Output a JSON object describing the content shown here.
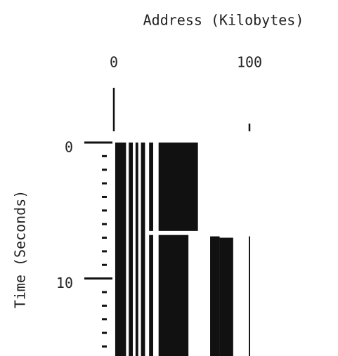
{
  "chart_data": {
    "type": "range",
    "title": "Address (Kilobytes)",
    "y_label": "Time (Seconds)",
    "xlim": [
      0,
      100
    ],
    "xticks": [
      0,
      100
    ],
    "ylim": [
      0,
      15.7
    ],
    "yticks": [
      0,
      10
    ],
    "yminorticks": [
      1,
      2,
      3,
      4,
      5,
      6,
      7,
      8,
      9,
      11,
      12,
      13,
      14,
      15
    ],
    "color": "#111111",
    "regions": [
      {
        "x": [
          1,
          9
        ],
        "t": [
          0,
          15.7
        ]
      },
      {
        "x": [
          11,
          14
        ],
        "t": [
          0,
          15.7
        ]
      },
      {
        "x": [
          16,
          18
        ],
        "t": [
          0,
          15.7
        ]
      },
      {
        "x": [
          20,
          23
        ],
        "t": [
          0,
          15.7
        ]
      },
      {
        "x": [
          26,
          29
        ],
        "t": [
          0,
          6.5
        ]
      },
      {
        "x": [
          26,
          29
        ],
        "t": [
          6.8,
          15.7
        ]
      },
      {
        "x": [
          33,
          62
        ],
        "t": [
          0,
          6.5
        ]
      },
      {
        "x": [
          33,
          55
        ],
        "t": [
          6.8,
          15.7
        ]
      },
      {
        "x": [
          71,
          78
        ],
        "t": [
          6.9,
          15.7
        ]
      },
      {
        "x": [
          78,
          88
        ],
        "t": [
          7,
          15.7
        ]
      },
      {
        "x": [
          99.5,
          100.5
        ],
        "t": [
          6.9,
          15.7
        ]
      }
    ]
  }
}
